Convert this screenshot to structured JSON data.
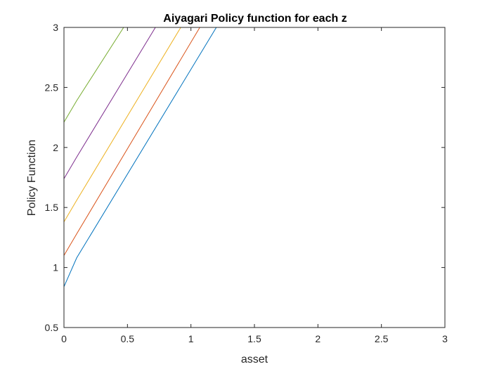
{
  "chart_data": {
    "type": "line",
    "title": "Aiyagari Policy function for each z",
    "xlabel": "asset",
    "ylabel": "Policy Function",
    "xlim": [
      0,
      3
    ],
    "ylim": [
      0.5,
      3
    ],
    "xticks": [
      0,
      0.5,
      1,
      1.5,
      2,
      2.5,
      3
    ],
    "xtick_labels": [
      "0",
      "0.5",
      "1",
      "1.5",
      "2",
      "2.5",
      "3"
    ],
    "yticks": [
      0.5,
      1,
      1.5,
      2,
      2.5,
      3
    ],
    "ytick_labels": [
      "0.5",
      "1",
      "1.5",
      "2",
      "2.5",
      "3"
    ],
    "grid": false,
    "legend": "none",
    "box": true,
    "series": [
      {
        "color": "#0072BD",
        "points": [
          [
            0,
            0.84
          ],
          [
            0.1,
            1.08
          ],
          [
            1.2,
            3.0
          ],
          [
            3.0,
            3.0
          ]
        ]
      },
      {
        "color": "#D95319",
        "points": [
          [
            0,
            1.1
          ],
          [
            0.1,
            1.28
          ],
          [
            1.07,
            3.0
          ],
          [
            3.0,
            3.0
          ]
        ]
      },
      {
        "color": "#EDB120",
        "points": [
          [
            0,
            1.38
          ],
          [
            0.1,
            1.56
          ],
          [
            0.92,
            3.0
          ],
          [
            3.0,
            3.0
          ]
        ]
      },
      {
        "color": "#7E2F8E",
        "points": [
          [
            0,
            1.74
          ],
          [
            0.1,
            1.92
          ],
          [
            0.72,
            3.0
          ],
          [
            3.0,
            3.0
          ]
        ]
      },
      {
        "color": "#77AC30",
        "points": [
          [
            0,
            2.21
          ],
          [
            0.1,
            2.39
          ],
          [
            0.47,
            3.0
          ],
          [
            3.0,
            3.0
          ]
        ]
      }
    ]
  }
}
